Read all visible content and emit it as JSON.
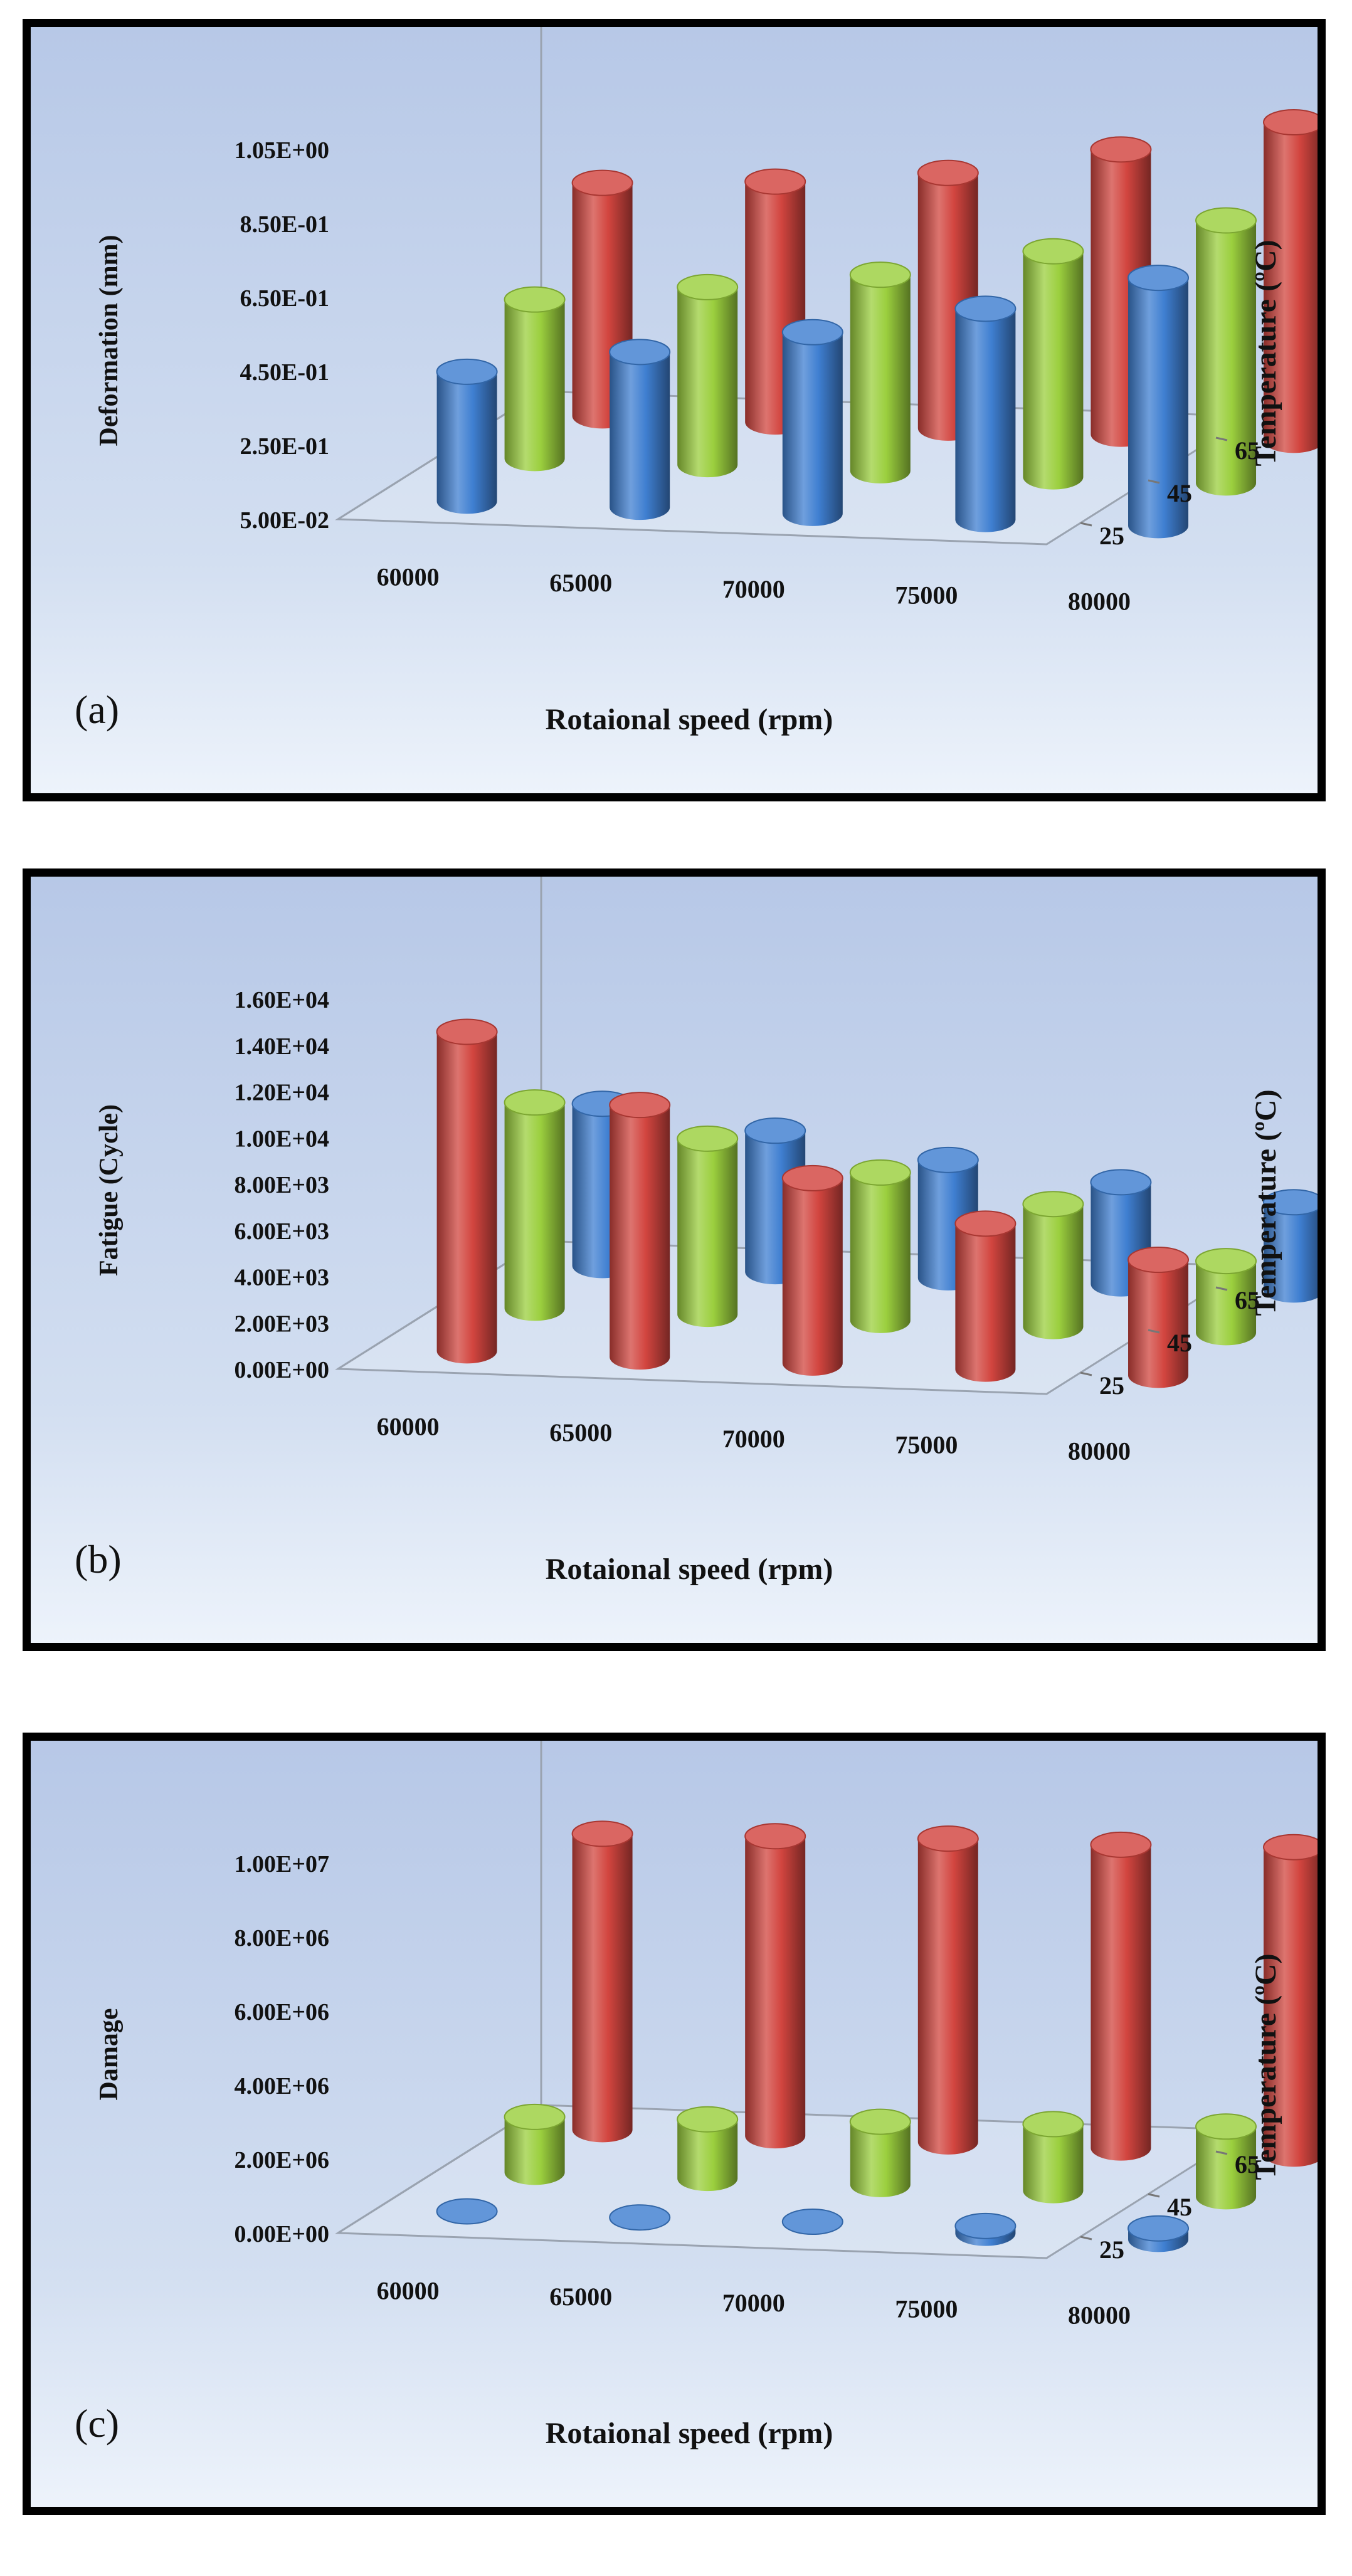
{
  "chart_data": [
    {
      "panel_label": "(a)",
      "type": "bar",
      "ylabel": "Deformation  (mm)",
      "xlabel": "Rotaional speed (rpm)",
      "zlabel": "Temperature (ºC)",
      "categories": [
        "60000",
        "65000",
        "70000",
        "75000",
        "80000"
      ],
      "z_ticks": [
        "65",
        "45",
        "25"
      ],
      "y_ticks": [
        "1.05E+00",
        "8.50E-01",
        "6.50E-01",
        "4.50E-01",
        "2.50E-01",
        "5.00E-02"
      ],
      "ylim": [
        0.05,
        1.05
      ],
      "series": [
        {
          "name": "25",
          "color": "#3f7fd1",
          "values": [
            0.4,
            0.47,
            0.54,
            0.62,
            0.72
          ]
        },
        {
          "name": "45",
          "color": "#9bcf3e",
          "values": [
            0.48,
            0.53,
            0.58,
            0.66,
            0.76
          ]
        },
        {
          "name": "65",
          "color": "#d2453f",
          "values": [
            0.68,
            0.7,
            0.74,
            0.82,
            0.91
          ]
        }
      ]
    },
    {
      "panel_label": "(b)",
      "type": "bar",
      "ylabel": "Fatigue  (Cycle)",
      "xlabel": "Rotaional speed (rpm)",
      "zlabel": "Temperature (ºC)",
      "categories": [
        "60000",
        "65000",
        "70000",
        "75000",
        "80000"
      ],
      "z_ticks": [
        "65",
        "45",
        "25"
      ],
      "y_ticks": [
        "1.60E+04",
        "1.40E+04",
        "1.20E+04",
        "1.00E+04",
        "8.00E+03",
        "6.00E+03",
        "4.00E+03",
        "2.00E+03",
        "0.00E+00"
      ],
      "ylim": [
        0,
        16000
      ],
      "series": [
        {
          "name": "25",
          "color": "#d2453f",
          "values": [
            13800,
            10900,
            8000,
            6300,
            5000
          ]
        },
        {
          "name": "45",
          "color": "#9bcf3e",
          "values": [
            8900,
            7600,
            6400,
            5300,
            3100
          ]
        },
        {
          "name": "65",
          "color": "#3f7fd1",
          "values": [
            7000,
            6100,
            5100,
            4400,
            3800
          ]
        }
      ]
    },
    {
      "panel_label": "(c)",
      "type": "bar",
      "ylabel": "Damage",
      "xlabel": "Rotaional speed (rpm)",
      "zlabel": "Temperature (ºC)",
      "categories": [
        "60000",
        "65000",
        "70000",
        "75000",
        "80000"
      ],
      "z_ticks": [
        "65",
        "45",
        "25"
      ],
      "y_ticks": [
        "1.00E+07",
        "8.00E+06",
        "6.00E+06",
        "4.00E+06",
        "2.00E+06",
        "0.00E+00"
      ],
      "ylim": [
        0,
        10000000
      ],
      "series": [
        {
          "name": "25",
          "color": "#3f7fd1",
          "values": [
            100000,
            100000,
            150000,
            200000,
            300000
          ]
        },
        {
          "name": "45",
          "color": "#9bcf3e",
          "values": [
            1500000,
            1600000,
            1700000,
            1800000,
            1900000
          ]
        },
        {
          "name": "65",
          "color": "#d2453f",
          "values": [
            8000000,
            8100000,
            8200000,
            8200000,
            8300000
          ]
        }
      ]
    }
  ]
}
